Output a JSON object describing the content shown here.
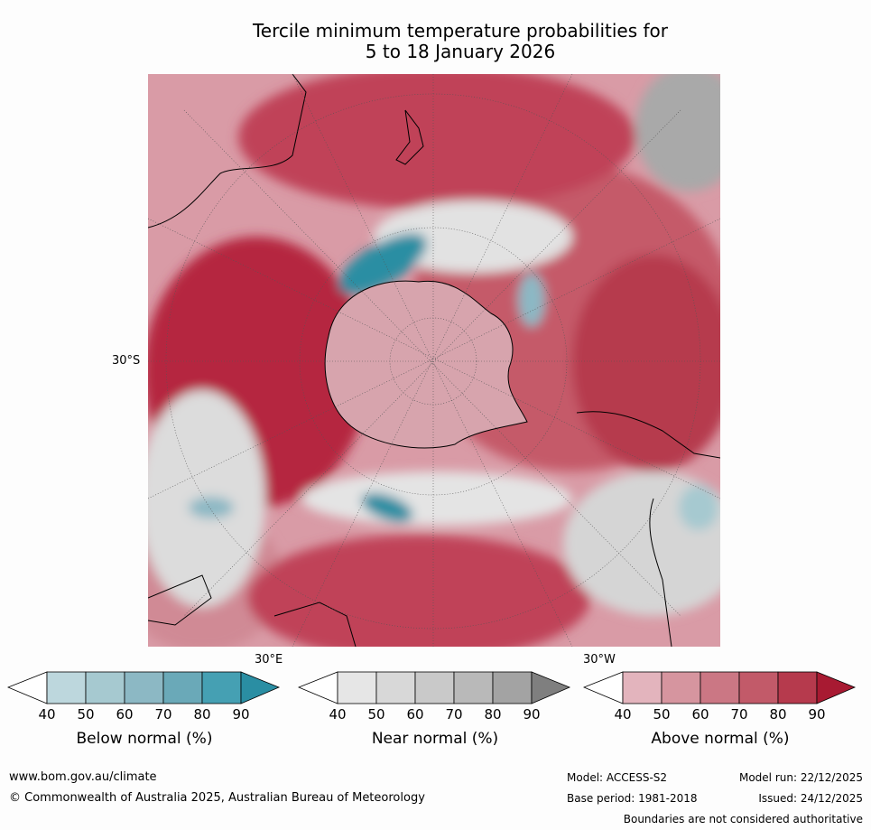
{
  "title": {
    "line1": "Tercile minimum temperature probabilities for",
    "line2": "5 to 18 January 2026"
  },
  "axis_labels": {
    "lat_left": "30°S",
    "lon_bottom_left": "30°E",
    "lon_bottom_right": "30°W"
  },
  "colorbars": [
    {
      "caption": "Below normal (%)",
      "ticks": [
        "40",
        "50",
        "60",
        "70",
        "80",
        "90"
      ],
      "colors": [
        "#ffffff",
        "#bdd7dd",
        "#a6c9d0",
        "#8cb8c4",
        "#6aa9b8",
        "#45a0b3",
        "#2a8ea3"
      ]
    },
    {
      "caption": "Near normal (%)",
      "ticks": [
        "40",
        "50",
        "60",
        "70",
        "80",
        "90"
      ],
      "colors": [
        "#ffffff",
        "#e6e6e6",
        "#d8d8d8",
        "#c9c9c9",
        "#b9b9b9",
        "#a3a3a3",
        "#7f7f7f"
      ]
    },
    {
      "caption": "Above normal (%)",
      "ticks": [
        "40",
        "50",
        "60",
        "70",
        "80",
        "90"
      ],
      "colors": [
        "#ffffff",
        "#e3b4bd",
        "#d6959f",
        "#cb7784",
        "#c25a69",
        "#b63a4d",
        "#a81a32"
      ]
    }
  ],
  "footer": {
    "website": "www.bom.gov.au/climate",
    "copyright": "© Commonwealth of Australia 2025, Australian Bureau of Meteorology",
    "model": "Model: ACCESS-S2",
    "model_run": "Model run: 22/12/2025",
    "base_period": "Base period: 1981-2018",
    "issued": "Issued: 24/12/2025",
    "disclaimer": "Boundaries are not considered authoritative"
  }
}
